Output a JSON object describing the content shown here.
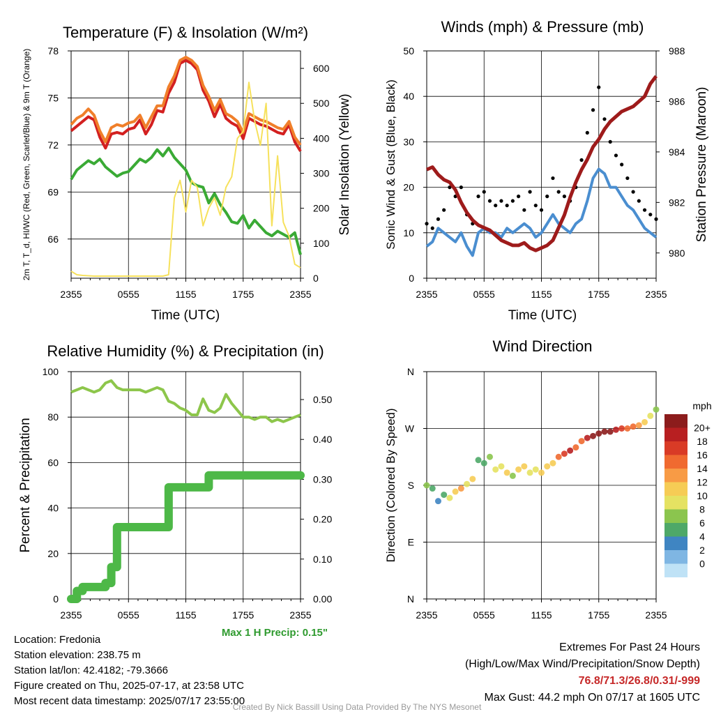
{
  "chart_data": [
    {
      "type": "line",
      "title": "Temperature (F) & Insolation (W/m²)",
      "xlabel": "Time (UTC)",
      "ylabel": "2m T, T_d, HI/WC (Red, Green, Scarlet/Blue) & 9m T (Orange)",
      "ylabel_right": "Solar Insolation (Yellow)",
      "x_ticks": [
        "2355",
        "0555",
        "1155",
        "1755",
        "2355"
      ],
      "ylim": [
        63.5,
        78
      ],
      "y_ticks": [
        66,
        69,
        72,
        75,
        78
      ],
      "y2lim": [
        0,
        650
      ],
      "y2_ticks": [
        0,
        100,
        200,
        300,
        400,
        500,
        600
      ],
      "grid": true,
      "series": [
        {
          "color": "#d32020",
          "axis": "left",
          "values": [
            72.9,
            73.2,
            73.5,
            73.8,
            73.6,
            72.5,
            71.8,
            72.7,
            72.8,
            72.7,
            73,
            73.1,
            73.6,
            72.7,
            73.3,
            74.2,
            74.1,
            75.3,
            76,
            77.2,
            77.4,
            77.2,
            76.8,
            75.5,
            74.8,
            73.8,
            74.6,
            73.7,
            73.4,
            73.2,
            72.4,
            73.7,
            73.5,
            73.3,
            73.2,
            73,
            72.8,
            72.7,
            73.3,
            72.2,
            71.6
          ]
        },
        {
          "color": "#f07f2a",
          "axis": "left",
          "values": [
            73.3,
            73.7,
            73.9,
            74.3,
            73.9,
            72.9,
            72.2,
            73.1,
            73.3,
            73.2,
            73.4,
            73.5,
            73.9,
            73.1,
            73.8,
            74.5,
            74.5,
            75.7,
            76.4,
            77.4,
            77.6,
            77.4,
            77,
            75.8,
            75.1,
            74.2,
            74.9,
            74,
            73.8,
            73.5,
            72.8,
            74,
            73.8,
            73.6,
            73.5,
            73.3,
            73.1,
            73,
            73.5,
            72.5,
            72
          ]
        },
        {
          "color": "#3aaa35",
          "axis": "left",
          "values": [
            69.8,
            70.4,
            70.7,
            71,
            70.8,
            71.1,
            70.6,
            70.3,
            70,
            70.2,
            70.3,
            70.7,
            71.1,
            70.9,
            71.2,
            71.7,
            71.3,
            71.8,
            71.2,
            70.8,
            70.4,
            69.6,
            69.4,
            69.3,
            68.3,
            68.9,
            68.2,
            67.7,
            67.1,
            67,
            67.5,
            66.7,
            67.2,
            66.8,
            66.4,
            66.2,
            66.5,
            66.3,
            66.1,
            66.4,
            65
          ]
        },
        {
          "color": "#f6e15c",
          "axis": "right",
          "values": [
            20,
            10,
            8,
            7,
            6,
            6,
            6,
            6,
            6,
            6,
            6,
            6,
            6,
            6,
            6,
            6,
            6,
            10,
            230,
            280,
            190,
            280,
            260,
            150,
            200,
            230,
            180,
            260,
            290,
            400,
            420,
            560,
            450,
            380,
            500,
            150,
            350,
            160,
            120,
            40,
            30
          ]
        }
      ]
    },
    {
      "type": "line",
      "title": "Winds (mph) & Pressure (mb)",
      "xlabel": "Time (UTC)",
      "ylabel": "Sonic Wind & Gust (Blue, Black)",
      "ylabel_right": "Station Pressure (Maroon)",
      "x_ticks": [
        "2355",
        "0555",
        "1155",
        "1755",
        "2355"
      ],
      "ylim": [
        0,
        50
      ],
      "y_ticks": [
        0,
        10,
        20,
        30,
        40,
        50
      ],
      "y2lim": [
        979,
        988
      ],
      "y2_ticks": [
        980,
        982,
        984,
        986,
        988
      ],
      "grid": true,
      "series": [
        {
          "color": "#4a8ed0",
          "axis": "left",
          "kind": "line",
          "values": [
            7,
            8,
            11,
            10,
            9,
            8,
            10,
            7,
            5,
            10,
            11,
            10,
            10,
            9,
            11,
            10,
            11,
            12,
            11,
            9,
            10,
            12,
            14,
            12,
            11,
            10,
            12,
            13,
            17,
            22,
            24,
            23,
            20,
            20,
            18,
            16,
            15,
            13,
            11,
            10,
            9
          ]
        },
        {
          "color": "#000000",
          "axis": "left",
          "kind": "points",
          "values": [
            12,
            11,
            13,
            15,
            20,
            18,
            20,
            14,
            12,
            18,
            19,
            17,
            16,
            17,
            16,
            17,
            18,
            15,
            19,
            16,
            15,
            18,
            22,
            19,
            18,
            17,
            20,
            26,
            32,
            37,
            42,
            35,
            30,
            27,
            25,
            22,
            19,
            17,
            15,
            14,
            13
          ]
        },
        {
          "color": "#9e1b1b",
          "axis": "right",
          "values": [
            983.3,
            983.4,
            983.1,
            982.9,
            982.8,
            982.5,
            982.0,
            981.6,
            981.3,
            981.1,
            981.0,
            980.9,
            980.7,
            980.5,
            980.4,
            980.3,
            980.3,
            980.4,
            980.2,
            980.1,
            980.2,
            980.3,
            980.5,
            981.0,
            981.5,
            982.2,
            982.8,
            983.3,
            983.7,
            984.2,
            984.5,
            984.9,
            985.2,
            985.4,
            985.6,
            985.7,
            985.8,
            986.0,
            986.2,
            986.7,
            987.0
          ]
        }
      ]
    },
    {
      "type": "line",
      "title": "Relative Humidity (%) & Precipitation (in)",
      "ylabel": "Percent & Precipitation",
      "x_ticks": [
        "2355",
        "0555",
        "1155",
        "1755",
        "2355"
      ],
      "ylim": [
        0,
        100
      ],
      "y_ticks": [
        0,
        20,
        40,
        60,
        80,
        100
      ],
      "y2lim": [
        0,
        0.57
      ],
      "y2_ticks": [
        "0.00",
        "0.10",
        "0.20",
        "0.30",
        "0.40",
        "0.50"
      ],
      "grid": true,
      "annotation": "Max 1 H Precip: 0.15\"",
      "series": [
        {
          "color": "#8dc64b",
          "axis": "left",
          "kind": "line",
          "values": [
            91,
            92,
            93,
            92,
            91,
            92,
            95,
            96,
            93,
            92,
            92,
            92,
            92,
            91,
            92,
            93,
            92,
            87,
            86,
            84,
            83,
            81,
            81,
            88,
            83,
            82,
            84,
            90,
            86,
            83,
            80,
            80,
            79,
            80,
            80,
            78,
            79,
            78,
            79,
            80,
            81
          ]
        },
        {
          "color": "#4db847",
          "axis": "right",
          "kind": "step",
          "values": [
            0,
            0.02,
            0.03,
            0.03,
            0.03,
            0.03,
            0.04,
            0.08,
            0.18,
            0.18,
            0.18,
            0.18,
            0.18,
            0.18,
            0.18,
            0.18,
            0.18,
            0.28,
            0.28,
            0.28,
            0.28,
            0.28,
            0.28,
            0.28,
            0.31,
            0.31,
            0.31,
            0.31,
            0.31,
            0.31,
            0.31,
            0.31,
            0.31,
            0.31,
            0.31,
            0.31,
            0.31,
            0.31,
            0.31,
            0.31,
            0.31
          ]
        }
      ]
    },
    {
      "type": "scatter",
      "title": "Wind Direction",
      "ylabel": "Direction (Colored By Speed)",
      "x_ticks": [
        "2355",
        "0555",
        "1155",
        "1755",
        "2355"
      ],
      "ylim": [
        0,
        360
      ],
      "y_ticks": [
        "N",
        "E",
        "S",
        "W",
        "N"
      ],
      "grid": true,
      "colorbar_title": "mph",
      "colorbar_labels": [
        "20+",
        "18",
        "16",
        "14",
        "12",
        "10",
        "8",
        "6",
        "4",
        "2",
        "0"
      ],
      "colorbar_colors": [
        "#8c1c1c",
        "#b81f21",
        "#d93b26",
        "#f06a30",
        "#f89b45",
        "#f6cc55",
        "#e5e262",
        "#8bc54e",
        "#4ea868",
        "#3f85c2",
        "#7fb6e3",
        "#bfe2f6"
      ],
      "directions": [
        180,
        175,
        155,
        165,
        160,
        170,
        175,
        182,
        190,
        220,
        215,
        225,
        205,
        210,
        200,
        195,
        205,
        210,
        200,
        205,
        200,
        210,
        215,
        225,
        230,
        235,
        240,
        250,
        255,
        258,
        262,
        265,
        265,
        268,
        270,
        270,
        273,
        275,
        280,
        290,
        300
      ],
      "speeds": [
        7,
        5,
        4,
        6,
        9,
        11,
        13,
        9,
        11,
        5,
        5,
        7,
        9,
        10,
        11,
        8,
        12,
        12,
        10,
        9,
        12,
        11,
        12,
        15,
        17,
        19,
        15,
        16,
        19,
        21,
        22,
        21,
        20,
        19,
        18,
        16,
        15,
        14,
        11,
        9,
        8
      ]
    }
  ],
  "info": {
    "location": "Location: Fredonia",
    "elevation": "Station elevation: 238.75 m",
    "latlon": "Station lat/lon: 42.4182; -79.3666",
    "created": "Figure created on Thu, 2025-07-17, at 23:58 UTC",
    "recent": "Most recent data timestamp: 2025/07/17 23:55:00"
  },
  "extremes": {
    "title": "Extremes For Past 24 Hours",
    "subtitle": "(High/Low/Max Wind/Precipitation/Snow Depth)",
    "values": "76.8/71.3/26.8/0.31/-999",
    "gust": "Max Gust: 44.2 mph On 07/17 at 1605 UTC"
  },
  "credit": "Created By Nick Bassill Using Data Provided By The NYS Mesonet"
}
